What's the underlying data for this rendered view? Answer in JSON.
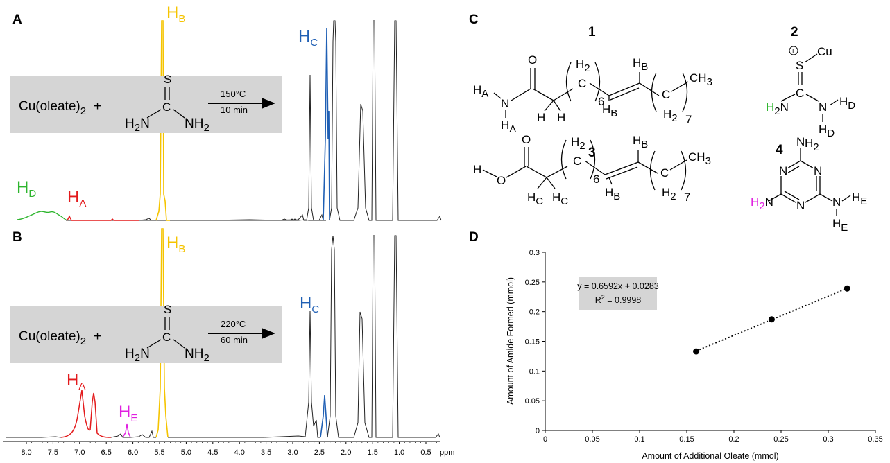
{
  "panels": {
    "a": "A",
    "b": "B",
    "c": "C",
    "d": "D"
  },
  "colors": {
    "ha": "#e31a1c",
    "hb": "#f5c400",
    "hc": "#1f5fb4",
    "hd": "#2db52d",
    "he": "#e020e0",
    "trace": "#222222"
  },
  "labels": {
    "h": "H",
    "a": "A",
    "b": "B",
    "c": "C",
    "d": "D",
    "e": "E"
  },
  "reaction": {
    "reactant": "Cu(oleate)",
    "reactant_sub": "2",
    "plus": "+",
    "thiourea": {
      "s": "S",
      "c": "C",
      "h2n": "H",
      "h2n_sub": "2",
      "h2n_n": "N",
      "nh2": "NH",
      "nh2_sub": "2"
    },
    "a_temp": "150°C",
    "a_time": "10 min",
    "b_temp": "220°C",
    "b_time": "60 min"
  },
  "spectrum_axis": {
    "ticks": [
      "8.0",
      "7.5",
      "7.0",
      "6.5",
      "6.0",
      "5.5",
      "5.0",
      "4.5",
      "4.0",
      "3.5",
      "3.0",
      "2.5",
      "2.0",
      "1.5",
      "1.0",
      "0.5"
    ],
    "unit": "ppm"
  },
  "structures": {
    "s1": "1",
    "s2": "2",
    "s3": "3",
    "s4": "4",
    "h": "H",
    "n": "N",
    "o": "O",
    "c": "C",
    "s": "S",
    "cu": "Cu",
    "ch3": "CH",
    "three": "3",
    "two": "2",
    "six": "6",
    "seven": "7",
    "plus_circle": "+"
  },
  "chart_data": {
    "type": "scatter",
    "x": [
      0.16,
      0.24,
      0.32
    ],
    "y": [
      0.133,
      0.187,
      0.239
    ],
    "xlabel": "Amount of Additional Oleate (mmol)",
    "ylabel": "Amount of Amide Formed (mmol)",
    "xlim": [
      0,
      0.35
    ],
    "ylim": [
      0,
      0.3
    ],
    "xticks": [
      "0",
      "0.05",
      "0.1",
      "0.15",
      "0.2",
      "0.25",
      "0.3",
      "0.35"
    ],
    "yticks": [
      "0",
      "0.05",
      "0.1",
      "0.15",
      "0.2",
      "0.25",
      "0.3"
    ],
    "trendline": {
      "slope": 0.6592,
      "intercept": 0.0283,
      "style": "dotted"
    },
    "equation": "y = 0.6592x + 0.0283",
    "r2_label": "R",
    "r2_sup": "2",
    "r2_value": " = 0.9998",
    "grid": false
  }
}
